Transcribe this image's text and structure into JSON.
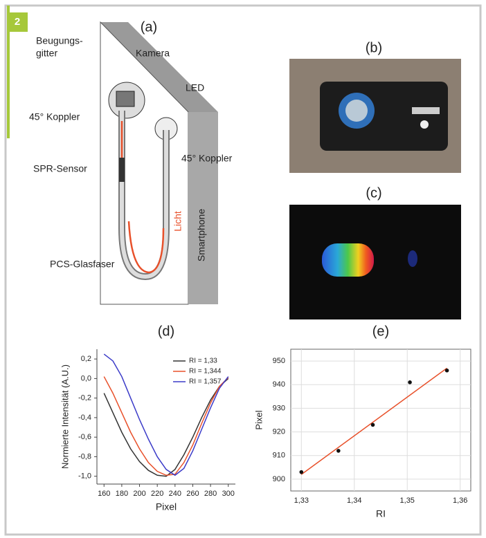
{
  "badge": "2",
  "panels": {
    "a": "(a)",
    "b": "(b)",
    "c": "(c)"
  },
  "diagram_labels": [
    "Beugungs-",
    "gitter",
    "Kamera",
    "45° Koppler",
    "LED",
    "45° Koppler",
    "SPR-Sensor",
    "Licht",
    "PCS-Glasfaser",
    "Smartphone"
  ],
  "chart_data": [
    {
      "type": "line",
      "title": "(d)",
      "x_label": "Pixel",
      "y_label": "Normierte Intensität (A.U.)",
      "x": [
        160,
        170,
        180,
        190,
        200,
        210,
        220,
        230,
        240,
        250,
        260,
        270,
        280,
        290,
        300
      ],
      "series": [
        {
          "name": "RI = 1,33",
          "color": "#333333",
          "values": [
            -0.15,
            -0.35,
            -0.55,
            -0.72,
            -0.85,
            -0.94,
            -0.99,
            -1.0,
            -0.93,
            -0.78,
            -0.6,
            -0.4,
            -0.22,
            -0.08,
            0.0
          ]
        },
        {
          "name": "RI = 1,344",
          "color": "#e8502a",
          "values": [
            0.02,
            -0.15,
            -0.35,
            -0.55,
            -0.72,
            -0.86,
            -0.95,
            -0.99,
            -0.98,
            -0.86,
            -0.68,
            -0.46,
            -0.25,
            -0.08,
            0.01
          ]
        },
        {
          "name": "RI = 1,357",
          "color": "#3b3bc8",
          "values": [
            0.25,
            0.18,
            0.02,
            -0.2,
            -0.42,
            -0.62,
            -0.8,
            -0.93,
            -0.99,
            -0.92,
            -0.74,
            -0.52,
            -0.3,
            -0.1,
            0.02
          ]
        }
      ],
      "xlim": [
        152,
        308
      ],
      "xticks": [
        160,
        180,
        200,
        220,
        240,
        260,
        280,
        300
      ],
      "ylim": [
        -1.08,
        0.3
      ],
      "yticks": [
        {
          "value": 0.2,
          "label": "0,2"
        },
        {
          "value": 0.0,
          "label": "0,0"
        },
        {
          "value": -0.2,
          "label": "-0,2"
        },
        {
          "value": -0.4,
          "label": "-0,4"
        },
        {
          "value": -0.6,
          "label": "-0,6"
        },
        {
          "value": -0.8,
          "label": "-0,8"
        },
        {
          "value": -1.0,
          "label": "-1,0"
        }
      ],
      "grid": false
    },
    {
      "type": "scatter",
      "title": "(e)",
      "x_label": "RI",
      "y_label": "Pixel",
      "x": [
        1.33,
        1.337,
        1.3435,
        1.3505,
        1.3575
      ],
      "values": [
        903,
        912,
        923,
        941,
        946
      ],
      "color": "#111111",
      "fit": {
        "x": [
          1.33,
          1.3575
        ],
        "values": [
          902,
          947
        ],
        "color": "#e8502a"
      },
      "xlim": [
        1.328,
        1.362
      ],
      "xticks": [
        {
          "value": 1.33,
          "label": "1,33"
        },
        {
          "value": 1.34,
          "label": "1,34"
        },
        {
          "value": 1.35,
          "label": "1,35"
        },
        {
          "value": 1.36,
          "label": "1,36"
        }
      ],
      "ylim": [
        895,
        955
      ],
      "yticks": [
        900,
        910,
        920,
        930,
        940,
        950
      ],
      "grid": true
    }
  ]
}
